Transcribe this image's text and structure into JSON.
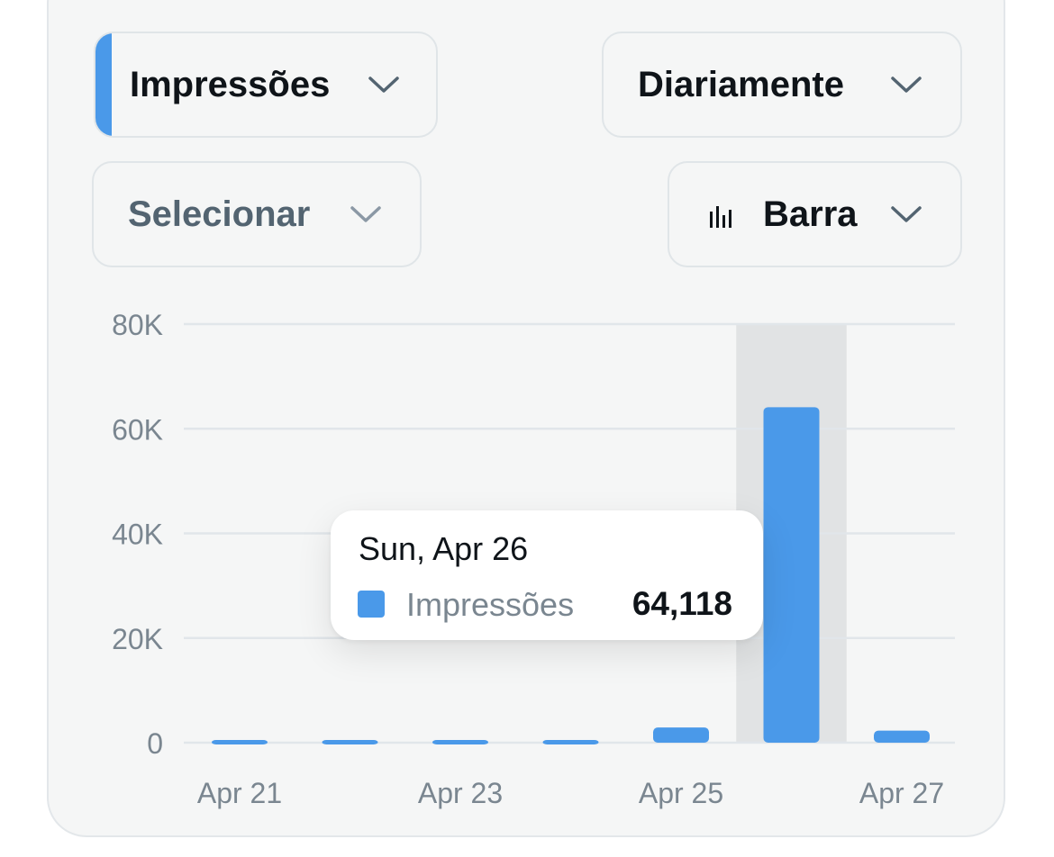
{
  "controls": {
    "metric": {
      "label": "Impressões",
      "accent_color": "#4a99e9"
    },
    "period": {
      "label": "Diariamente"
    },
    "select": {
      "label": "Selecionar"
    },
    "chart_type": {
      "label": "Barra",
      "icon": "bar-chart-icon"
    }
  },
  "tooltip": {
    "date": "Sun, Apr 26",
    "series_label": "Impressões",
    "value_text": "64,118",
    "swatch_color": "#4a99e9"
  },
  "chart_data": {
    "type": "bar",
    "categories": [
      "Apr 21",
      "Apr 22",
      "Apr 23",
      "Apr 24",
      "Apr 25",
      "Apr 26",
      "Apr 27"
    ],
    "x_tick_labels": [
      "Apr 21",
      "",
      "Apr 23",
      "",
      "Apr 25",
      "",
      "Apr 27"
    ],
    "series": [
      {
        "name": "Impressões",
        "values": [
          300,
          300,
          300,
          300,
          2900,
          64118,
          2300
        ],
        "color": "#4a99e9"
      }
    ],
    "y_ticks": [
      0,
      20000,
      40000,
      60000,
      80000
    ],
    "y_tick_labels": [
      "0",
      "20K",
      "40K",
      "60K",
      "80K"
    ],
    "ylim": [
      0,
      80000
    ],
    "highlighted_category": "Apr 26",
    "highlight_color": "#e1e3e4",
    "grid": true,
    "grid_color": "#e1e6ea",
    "legend": "none"
  }
}
